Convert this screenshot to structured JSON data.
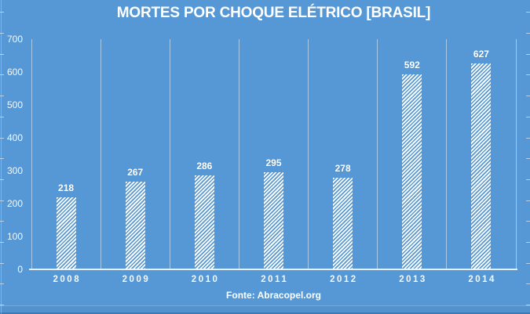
{
  "colors": {
    "background": "#5598d5",
    "bar_hatch": "#ffffff",
    "gridline": "#ffffff",
    "axis_line": "#ffffff",
    "text": "#ffffff"
  },
  "chart_data": {
    "type": "bar",
    "title": "MORTES POR CHOQUE ELÉTRICO [BRASIL]",
    "source": "Fonte: Abracopel.org",
    "categories": [
      "2008",
      "2009",
      "2010",
      "2011",
      "2012",
      "2013",
      "2014"
    ],
    "values": [
      218,
      267,
      286,
      295,
      278,
      592,
      627
    ],
    "xlabel": "",
    "ylabel": "",
    "ylim": [
      0,
      700
    ],
    "ytick_step": 100,
    "gridlines": "vertical-only",
    "legend": "none",
    "data_labels": true,
    "bar_fill_style": "white-diagonal-hatch"
  }
}
